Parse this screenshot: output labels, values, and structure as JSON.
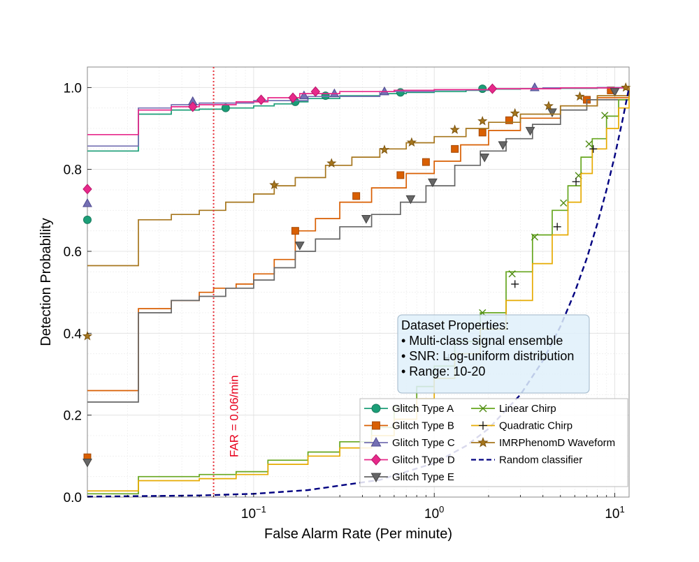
{
  "chart_data": {
    "type": "line",
    "title": "",
    "xlabel": "False Alarm Rate (Per minute)",
    "ylabel": "Detection Probability",
    "x_scale": "log",
    "xlim": [
      0.012,
      12
    ],
    "ylim": [
      0.0,
      1.05
    ],
    "x_ticks": [
      {
        "value": 0.1,
        "base": "10",
        "exp": "−1"
      },
      {
        "value": 1,
        "base": "10",
        "exp": "0"
      },
      {
        "value": 10,
        "base": "10",
        "exp": "1"
      }
    ],
    "y_ticks": [
      {
        "value": 0.0,
        "label": "0.0"
      },
      {
        "value": 0.2,
        "label": "0.2"
      },
      {
        "value": 0.4,
        "label": "0.4"
      },
      {
        "value": 0.6,
        "label": "0.6"
      },
      {
        "value": 0.8,
        "label": "0.8"
      },
      {
        "value": 1.0,
        "label": "1.0"
      }
    ],
    "grid": true,
    "legend_position": "lower-right",
    "far_line": {
      "x": 0.06,
      "color": "#e8323c",
      "label": "FAR = 0.06/min"
    },
    "info_box": {
      "lines": [
        "Dataset Properties:",
        "• Multi-class signal ensemble",
        "• SNR: Log-uniform distribution",
        "• Range: 10-20"
      ],
      "fill": "#dff0fa",
      "border": "#9fb6c8"
    },
    "series": [
      {
        "name": "Glitch Type A",
        "color": "#1b9e77",
        "marker": "circle",
        "edge": "#1b7a5e",
        "x": [
          0.012,
          0.023,
          0.035,
          0.05,
          0.07,
          0.1,
          0.13,
          0.17,
          0.2,
          0.3,
          0.5,
          0.7,
          1.0,
          1.5,
          2.0,
          3.0,
          5.0,
          8.0,
          12
        ],
        "y": [
          0.845,
          0.935,
          0.945,
          0.947,
          0.95,
          0.955,
          0.96,
          0.965,
          0.973,
          0.98,
          0.985,
          0.988,
          0.99,
          0.993,
          0.996,
          0.997,
          0.998,
          0.999,
          1.0
        ],
        "marker_points": [
          [
            0.012,
            0.677
          ],
          [
            0.07,
            0.95
          ],
          [
            0.17,
            0.965
          ],
          [
            0.25,
            0.98
          ],
          [
            0.65,
            0.988
          ],
          [
            1.85,
            0.997
          ]
        ]
      },
      {
        "name": "Glitch Type B",
        "color": "#d95f02",
        "marker": "square",
        "edge": "#a34700",
        "x": [
          0.012,
          0.023,
          0.035,
          0.05,
          0.06,
          0.08,
          0.1,
          0.13,
          0.17,
          0.22,
          0.3,
          0.45,
          0.7,
          1.0,
          1.4,
          2.0,
          3.0,
          5.0,
          8.0,
          12
        ],
        "y": [
          0.26,
          0.46,
          0.48,
          0.5,
          0.51,
          0.52,
          0.545,
          0.58,
          0.65,
          0.68,
          0.72,
          0.755,
          0.79,
          0.82,
          0.86,
          0.895,
          0.925,
          0.955,
          0.975,
          1.0
        ],
        "marker_points": [
          [
            0.012,
            0.097
          ],
          [
            0.17,
            0.65
          ],
          [
            0.37,
            0.735
          ],
          [
            0.65,
            0.786
          ],
          [
            0.9,
            0.818
          ],
          [
            1.3,
            0.85
          ],
          [
            1.85,
            0.89
          ],
          [
            2.6,
            0.92
          ],
          [
            7.0,
            0.97
          ],
          [
            9.5,
            0.993
          ]
        ]
      },
      {
        "name": "Glitch Type C",
        "color": "#7570b3",
        "marker": "triangle-up",
        "edge": "#4e4990",
        "x": [
          0.012,
          0.023,
          0.035,
          0.05,
          0.1,
          0.2,
          0.5,
          1.0,
          2.0,
          4.0,
          8.0,
          12
        ],
        "y": [
          0.857,
          0.95,
          0.958,
          0.962,
          0.968,
          0.978,
          0.99,
          0.994,
          0.997,
          0.999,
          1.0,
          1.0
        ],
        "marker_points": [
          [
            0.012,
            0.717
          ],
          [
            0.046,
            0.966
          ],
          [
            0.19,
            0.98
          ],
          [
            0.28,
            0.985
          ],
          [
            0.53,
            0.99
          ],
          [
            3.6,
            1.0
          ]
        ]
      },
      {
        "name": "Glitch Type D",
        "color": "#e7298a",
        "marker": "diamond",
        "edge": "#b8176a",
        "x": [
          0.012,
          0.023,
          0.035,
          0.05,
          0.08,
          0.12,
          0.18,
          0.3,
          0.6,
          1.0,
          2.0,
          5.0,
          12
        ],
        "y": [
          0.885,
          0.945,
          0.953,
          0.958,
          0.965,
          0.975,
          0.985,
          0.99,
          0.993,
          0.995,
          0.997,
          0.999,
          1.0
        ],
        "marker_points": [
          [
            0.012,
            0.752
          ],
          [
            0.046,
            0.953
          ],
          [
            0.11,
            0.97
          ],
          [
            0.165,
            0.975
          ],
          [
            0.22,
            0.99
          ],
          [
            2.1,
            0.997
          ]
        ]
      },
      {
        "name": "Glitch Type E",
        "color": "#666666",
        "marker": "triangle-down",
        "edge": "#444444",
        "x": [
          0.012,
          0.023,
          0.035,
          0.05,
          0.07,
          0.1,
          0.13,
          0.17,
          0.22,
          0.3,
          0.45,
          0.65,
          0.9,
          1.3,
          1.8,
          2.5,
          3.5,
          5.0,
          7.0,
          12
        ],
        "y": [
          0.232,
          0.45,
          0.48,
          0.49,
          0.51,
          0.53,
          0.56,
          0.6,
          0.63,
          0.66,
          0.69,
          0.72,
          0.76,
          0.81,
          0.845,
          0.875,
          0.91,
          0.945,
          0.97,
          1.0
        ],
        "marker_points": [
          [
            0.012,
            0.085
          ],
          [
            0.18,
            0.615
          ],
          [
            0.42,
            0.68
          ],
          [
            0.74,
            0.728
          ],
          [
            0.98,
            0.769
          ],
          [
            1.9,
            0.83
          ],
          [
            2.4,
            0.86
          ],
          [
            3.4,
            0.895
          ],
          [
            4.5,
            0.94
          ],
          [
            10.0,
            0.99
          ]
        ]
      },
      {
        "name": "Linear Chirp",
        "color": "#66a61e",
        "marker": "x",
        "edge": "#4f8b14",
        "x": [
          0.012,
          0.023,
          0.05,
          0.08,
          0.12,
          0.2,
          0.3,
          0.45,
          0.6,
          0.8,
          1.0,
          1.3,
          1.8,
          2.5,
          3.5,
          4.5,
          5.5,
          6.5,
          7.5,
          9.0,
          10.5,
          12
        ],
        "y": [
          0.008,
          0.05,
          0.055,
          0.062,
          0.09,
          0.11,
          0.135,
          0.17,
          0.22,
          0.27,
          0.32,
          0.38,
          0.45,
          0.55,
          0.64,
          0.7,
          0.76,
          0.83,
          0.875,
          0.93,
          0.97,
          1.0
        ],
        "marker_points": [
          [
            1.85,
            0.45
          ],
          [
            2.7,
            0.545
          ],
          [
            3.6,
            0.635
          ],
          [
            5.2,
            0.718
          ],
          [
            6.3,
            0.785
          ],
          [
            7.2,
            0.862
          ],
          [
            8.8,
            0.932
          ]
        ]
      },
      {
        "name": "Quadratic Chirp",
        "color": "#e6ab02",
        "marker": "plus",
        "edge": "#b8860b",
        "x": [
          0.012,
          0.023,
          0.05,
          0.08,
          0.12,
          0.2,
          0.3,
          0.45,
          0.6,
          0.8,
          1.0,
          1.3,
          1.8,
          2.5,
          3.5,
          4.5,
          5.5,
          6.5,
          7.5,
          9.0,
          10.5,
          12
        ],
        "y": [
          0.015,
          0.04,
          0.045,
          0.055,
          0.08,
          0.1,
          0.12,
          0.15,
          0.19,
          0.24,
          0.29,
          0.35,
          0.41,
          0.48,
          0.57,
          0.64,
          0.72,
          0.79,
          0.85,
          0.9,
          0.95,
          1.0
        ],
        "marker_points": [
          [
            0.65,
            0.22
          ],
          [
            1.2,
            0.34
          ],
          [
            2.8,
            0.52
          ],
          [
            4.8,
            0.66
          ],
          [
            6.1,
            0.77
          ],
          [
            7.6,
            0.85
          ]
        ]
      },
      {
        "name": "IMRPhenomD Waveform",
        "color": "#a6761d",
        "marker": "star",
        "edge": "#7d5510",
        "x": [
          0.012,
          0.023,
          0.035,
          0.05,
          0.07,
          0.1,
          0.13,
          0.17,
          0.25,
          0.35,
          0.5,
          0.7,
          1.0,
          1.5,
          2.0,
          3.0,
          5.0,
          8.0,
          12
        ],
        "y": [
          0.565,
          0.677,
          0.69,
          0.7,
          0.72,
          0.74,
          0.76,
          0.78,
          0.81,
          0.83,
          0.85,
          0.865,
          0.88,
          0.9,
          0.915,
          0.935,
          0.955,
          0.98,
          1.0
        ],
        "marker_points": [
          [
            0.012,
            0.393
          ],
          [
            0.13,
            0.762
          ],
          [
            0.27,
            0.815
          ],
          [
            0.53,
            0.848
          ],
          [
            0.75,
            0.866
          ],
          [
            1.3,
            0.897
          ],
          [
            1.85,
            0.918
          ],
          [
            2.8,
            0.937
          ],
          [
            4.3,
            0.955
          ],
          [
            6.4,
            0.978
          ],
          [
            11.5,
            1.0
          ]
        ]
      },
      {
        "name": "Random classifier",
        "color": "#000080",
        "marker": "none",
        "dashed": true,
        "x": [
          0.012,
          0.05,
          0.1,
          0.2,
          0.5,
          1.0,
          1.5,
          2.0,
          3.0,
          4.0,
          5.0,
          6.0,
          7.0,
          8.0,
          9.0,
          10.0,
          11.0,
          12
        ],
        "y": [
          0.001,
          0.004,
          0.008,
          0.017,
          0.042,
          0.083,
          0.125,
          0.167,
          0.25,
          0.333,
          0.417,
          0.5,
          0.583,
          0.667,
          0.75,
          0.833,
          0.917,
          1.0
        ]
      }
    ]
  }
}
